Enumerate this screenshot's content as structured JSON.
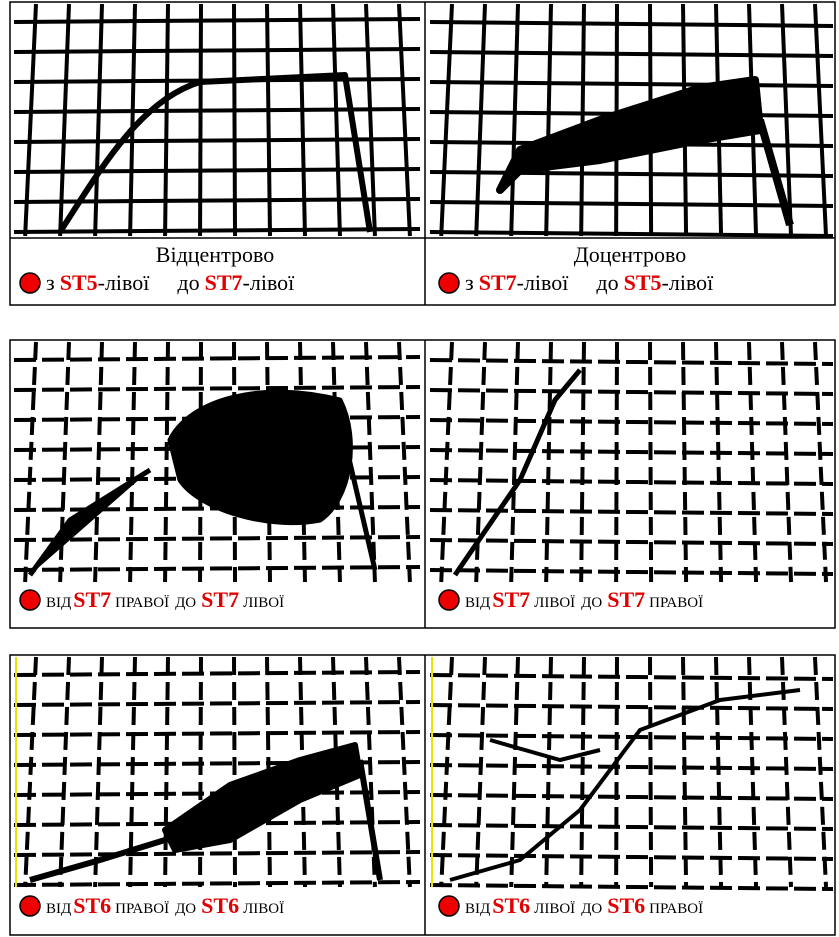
{
  "panels": [
    {
      "title": "Відцентрово",
      "caption": {
        "from_prefix": "з",
        "from": "ST5",
        "from_suffix": "-лівої",
        "to_prefix": "до",
        "to": "ST7",
        "to_suffix": "-лівої"
      }
    },
    {
      "title": "Доцентрово",
      "caption": {
        "from_prefix": "з",
        "from": "ST7",
        "from_suffix": "-лівої",
        "to_prefix": "до",
        "to": "ST5",
        "to_suffix": "-лівої"
      }
    },
    {
      "caption": {
        "from_prefix": "від",
        "from": "ST7",
        "from_suffix": "правої",
        "to_prefix": "до",
        "to": "ST7",
        "to_suffix": "лівої"
      }
    },
    {
      "caption": {
        "from_prefix": "від",
        "from": "ST7",
        "from_suffix": "лівої",
        "to_prefix": "до",
        "to": "ST7",
        "to_suffix": "правої"
      }
    },
    {
      "caption": {
        "from_prefix": "від",
        "from": "ST6",
        "from_suffix": "правої",
        "to_prefix": "до",
        "to": "ST6",
        "to_suffix": "лівої"
      }
    },
    {
      "caption": {
        "from_prefix": "від",
        "from": "ST6",
        "from_suffix": "лівої",
        "to_prefix": "до",
        "to": "ST6",
        "to_suffix": "правої"
      }
    }
  ]
}
